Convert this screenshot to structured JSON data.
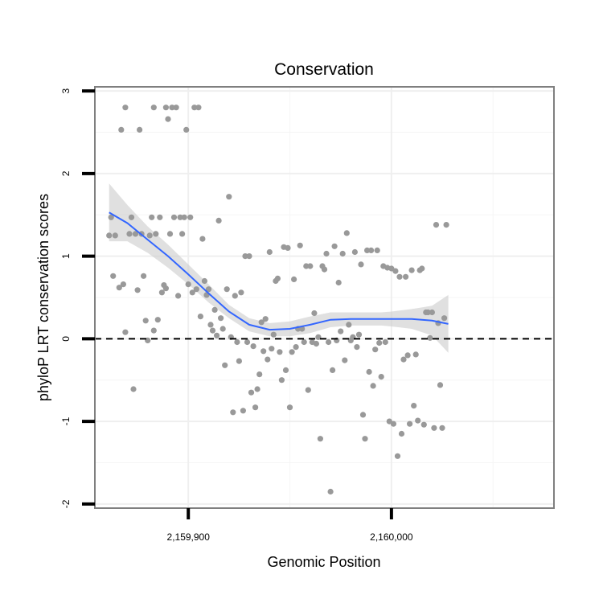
{
  "chart_data": {
    "type": "scatter",
    "title": "Conservation",
    "xlabel": "Genomic Position",
    "ylabel": "phyloP LRT conservation scores",
    "xlim": [
      2159854,
      2160080
    ],
    "ylim": [
      -2.05,
      3.05
    ],
    "x_ticks": [
      {
        "value": 2159900,
        "label": "2,159,900"
      },
      {
        "value": 2160000,
        "label": "2,160,000"
      }
    ],
    "x_minor_ticks": [
      2159850,
      2159950,
      2160050
    ],
    "y_ticks": [
      {
        "value": -2,
        "label": "-2"
      },
      {
        "value": -1,
        "label": "-1"
      },
      {
        "value": 0,
        "label": "0"
      },
      {
        "value": 1,
        "label": "1"
      },
      {
        "value": 2,
        "label": "2"
      },
      {
        "value": 3,
        "label": "3"
      }
    ],
    "y_minor_ticks": [
      -1.5,
      -0.5,
      0.5,
      1.5,
      2.5
    ],
    "grid": true,
    "reference_line": {
      "y": 0,
      "style": "dashed",
      "color": "#000000"
    },
    "series": [
      {
        "kind": "points",
        "color": "#999999",
        "points": [
          [
            2159861,
            1.25
          ],
          [
            2159862,
            1.47
          ],
          [
            2159863,
            0.76
          ],
          [
            2159864,
            1.25
          ],
          [
            2159866,
            0.62
          ],
          [
            2159867,
            2.53
          ],
          [
            2159868,
            0.66
          ],
          [
            2159869,
            2.8
          ],
          [
            2159869,
            0.08
          ],
          [
            2159871,
            1.27
          ],
          [
            2159872,
            1.47
          ],
          [
            2159873,
            -0.61
          ],
          [
            2159874,
            1.27
          ],
          [
            2159875,
            0.59
          ],
          [
            2159876,
            2.53
          ],
          [
            2159877,
            1.27
          ],
          [
            2159878,
            0.76
          ],
          [
            2159879,
            0.22
          ],
          [
            2159880,
            -0.02
          ],
          [
            2159881,
            1.25
          ],
          [
            2159882,
            1.47
          ],
          [
            2159883,
            0.1
          ],
          [
            2159883,
            2.8
          ],
          [
            2159884,
            1.27
          ],
          [
            2159885,
            0.23
          ],
          [
            2159886,
            1.47
          ],
          [
            2159887,
            0.56
          ],
          [
            2159888,
            0.65
          ],
          [
            2159889,
            2.8
          ],
          [
            2159889,
            0.61
          ],
          [
            2159890,
            2.66
          ],
          [
            2159891,
            1.27
          ],
          [
            2159892,
            2.8
          ],
          [
            2159893,
            1.47
          ],
          [
            2159894,
            2.8
          ],
          [
            2159895,
            0.52
          ],
          [
            2159896,
            1.47
          ],
          [
            2159897,
            1.27
          ],
          [
            2159898,
            1.47
          ],
          [
            2159899,
            2.53
          ],
          [
            2159900,
            0.66
          ],
          [
            2159901,
            1.47
          ],
          [
            2159902,
            0.56
          ],
          [
            2159903,
            2.8
          ],
          [
            2159904,
            0.6
          ],
          [
            2159905,
            2.8
          ],
          [
            2159906,
            0.27
          ],
          [
            2159907,
            1.21
          ],
          [
            2159908,
            0.7
          ],
          [
            2159909,
            0.53
          ],
          [
            2159910,
            0.6
          ],
          [
            2159911,
            0.17
          ],
          [
            2159912,
            0.1
          ],
          [
            2159913,
            0.35
          ],
          [
            2159914,
            0.04
          ],
          [
            2159915,
            1.43
          ],
          [
            2159916,
            0.25
          ],
          [
            2159917,
            0.12
          ],
          [
            2159918,
            -0.32
          ],
          [
            2159919,
            0.6
          ],
          [
            2159920,
            1.72
          ],
          [
            2159921,
            0.02
          ],
          [
            2159922,
            -0.89
          ],
          [
            2159923,
            0.52
          ],
          [
            2159924,
            -0.04
          ],
          [
            2159925,
            -0.27
          ],
          [
            2159926,
            0.56
          ],
          [
            2159927,
            -0.87
          ],
          [
            2159928,
            1.0
          ],
          [
            2159929,
            -0.04
          ],
          [
            2159930,
            1.0
          ],
          [
            2159931,
            -0.65
          ],
          [
            2159932,
            -0.09
          ],
          [
            2159933,
            -0.83
          ],
          [
            2159934,
            -0.61
          ],
          [
            2159935,
            -0.43
          ],
          [
            2159936,
            0.2
          ],
          [
            2159937,
            -0.15
          ],
          [
            2159938,
            0.24
          ],
          [
            2159939,
            -0.25
          ],
          [
            2159940,
            1.05
          ],
          [
            2159941,
            -0.12
          ],
          [
            2159942,
            0.05
          ],
          [
            2159943,
            0.7
          ],
          [
            2159944,
            0.73
          ],
          [
            2159945,
            -0.16
          ],
          [
            2159946,
            -0.5
          ],
          [
            2159947,
            1.11
          ],
          [
            2159948,
            -0.38
          ],
          [
            2159949,
            1.1
          ],
          [
            2159950,
            -0.83
          ],
          [
            2159951,
            -0.16
          ],
          [
            2159952,
            0.72
          ],
          [
            2159953,
            -0.1
          ],
          [
            2159954,
            0.12
          ],
          [
            2159955,
            1.13
          ],
          [
            2159956,
            0.12
          ],
          [
            2159957,
            -0.04
          ],
          [
            2159958,
            0.88
          ],
          [
            2159959,
            -0.62
          ],
          [
            2159960,
            0.88
          ],
          [
            2159961,
            -0.04
          ],
          [
            2159962,
            0.31
          ],
          [
            2159963,
            -0.06
          ],
          [
            2159964,
            0.02
          ],
          [
            2159965,
            -1.21
          ],
          [
            2159966,
            0.88
          ],
          [
            2159967,
            0.84
          ],
          [
            2159968,
            1.03
          ],
          [
            2159969,
            -0.04
          ],
          [
            2159970,
            -1.85
          ],
          [
            2159971,
            -0.38
          ],
          [
            2159972,
            1.12
          ],
          [
            2159973,
            -0.02
          ],
          [
            2159974,
            0.68
          ],
          [
            2159975,
            0.09
          ],
          [
            2159976,
            1.03
          ],
          [
            2159977,
            -0.26
          ],
          [
            2159978,
            1.28
          ],
          [
            2159979,
            0.17
          ],
          [
            2159980,
            -0.02
          ],
          [
            2159981,
            0.02
          ],
          [
            2159982,
            1.05
          ],
          [
            2159983,
            -0.1
          ],
          [
            2159984,
            0.05
          ],
          [
            2159985,
            0.9
          ],
          [
            2159986,
            -0.92
          ],
          [
            2159987,
            -1.21
          ],
          [
            2159988,
            1.07
          ],
          [
            2159989,
            -0.4
          ],
          [
            2159990,
            1.07
          ],
          [
            2159991,
            -0.57
          ],
          [
            2159992,
            -0.13
          ],
          [
            2159993,
            1.07
          ],
          [
            2159994,
            -0.05
          ],
          [
            2159995,
            -0.46
          ],
          [
            2159996,
            0.88
          ],
          [
            2159997,
            -0.04
          ],
          [
            2159998,
            0.86
          ],
          [
            2159999,
            -1.0
          ],
          [
            2160000,
            0.85
          ],
          [
            2160001,
            -1.03
          ],
          [
            2160002,
            0.82
          ],
          [
            2160003,
            -1.42
          ],
          [
            2160004,
            0.75
          ],
          [
            2160005,
            -1.15
          ],
          [
            2160006,
            -0.25
          ],
          [
            2160007,
            0.75
          ],
          [
            2160008,
            -0.2
          ],
          [
            2160009,
            -1.03
          ],
          [
            2160010,
            0.83
          ],
          [
            2160011,
            -0.81
          ],
          [
            2160012,
            -0.19
          ],
          [
            2160013,
            -0.99
          ],
          [
            2160014,
            0.83
          ],
          [
            2160015,
            0.85
          ],
          [
            2160016,
            -1.04
          ],
          [
            2160017,
            0.32
          ],
          [
            2160018,
            0.32
          ],
          [
            2160019,
            0.01
          ],
          [
            2160020,
            0.32
          ],
          [
            2160021,
            -1.08
          ],
          [
            2160022,
            1.38
          ],
          [
            2160023,
            0.19
          ],
          [
            2160024,
            -0.56
          ],
          [
            2160025,
            -1.08
          ],
          [
            2160026,
            0.25
          ],
          [
            2160027,
            1.38
          ]
        ]
      },
      {
        "kind": "smooth",
        "color": "#3366ff",
        "band_color": "#cccccc",
        "x": [
          2159861,
          2159870,
          2159880,
          2159890,
          2159900,
          2159910,
          2159920,
          2159930,
          2159940,
          2159950,
          2159960,
          2159970,
          2159980,
          2159990,
          2159995,
          2160000,
          2160010,
          2160020,
          2160028
        ],
        "y": [
          1.53,
          1.4,
          1.2,
          1.0,
          0.78,
          0.55,
          0.33,
          0.17,
          0.11,
          0.12,
          0.17,
          0.23,
          0.24,
          0.24,
          0.24,
          0.24,
          0.24,
          0.22,
          0.18
        ],
        "lower": [
          1.18,
          1.18,
          1.04,
          0.86,
          0.66,
          0.44,
          0.25,
          0.09,
          0.03,
          0.03,
          0.07,
          0.14,
          0.16,
          0.16,
          0.16,
          0.15,
          0.12,
          0.04,
          -0.17
        ],
        "upper": [
          1.88,
          1.62,
          1.36,
          1.14,
          0.9,
          0.66,
          0.41,
          0.25,
          0.19,
          0.21,
          0.27,
          0.32,
          0.32,
          0.32,
          0.32,
          0.33,
          0.36,
          0.4,
          0.53
        ]
      }
    ]
  }
}
